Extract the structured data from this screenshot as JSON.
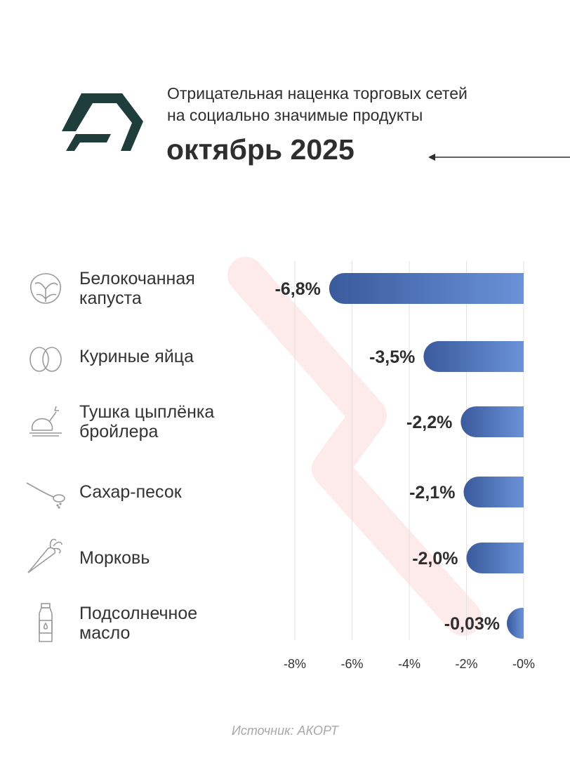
{
  "header": {
    "subtitle_line1": "Отрицательная наценка торговых сетей",
    "subtitle_line2": "на социально значимые продукты",
    "period": "октябрь 2025"
  },
  "colors": {
    "bar_dark": "#3a5a9c",
    "bar_light": "#6a92d8",
    "logo": "#1f3d3b",
    "background_arrow": "#fdeaea"
  },
  "chart_data": {
    "type": "bar",
    "orientation": "horizontal",
    "categories": [
      [
        "Белокочанная",
        "капуста"
      ],
      [
        "Куриные яйца"
      ],
      [
        "Тушка цыплёнка",
        "бройлера"
      ],
      [
        "Сахар-песок"
      ],
      [
        "Морковь"
      ],
      [
        "Подсолнечное",
        "масло"
      ]
    ],
    "category_icons": [
      "cabbage-icon",
      "eggs-icon",
      "chicken-icon",
      "sugar-spoon-icon",
      "carrot-icon",
      "oil-bottle-icon"
    ],
    "values": [
      -6.8,
      -3.5,
      -2.2,
      -2.1,
      -2.0,
      -0.03
    ],
    "value_labels": [
      "-6,8%",
      "-3,5%",
      "-2,2%",
      "-2,1%",
      "-2,0%",
      "-0,03%"
    ],
    "x_ticks": [
      "-8%",
      "-6%",
      "-4%",
      "-2%",
      "-0%"
    ],
    "x_tick_values": [
      -8,
      -6,
      -4,
      -2,
      0
    ],
    "xlim": [
      -8,
      0
    ],
    "grid": true
  },
  "footer": {
    "source": "Источник: АКОРТ"
  }
}
